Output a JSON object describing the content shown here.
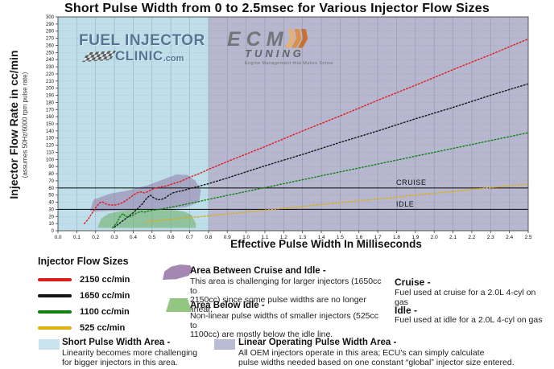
{
  "title": "Short Pulse Width from 0 to 2.5msec for Various Injector Flow Sizes",
  "watermarks": {
    "fic": {
      "line1": "FUEL INJECTOR",
      "line2": "CLINIC",
      "suffix": ".com"
    },
    "ecm": {
      "line1": "ECM",
      "line2": "TUNING",
      "tagline": "Engine Management that Makes Sense"
    }
  },
  "chart_data": {
    "type": "line",
    "title": "Short Pulse Width from 0 to 2.5msec for Various Injector Flow Sizes",
    "x_axis": {
      "label": "Effective Pulse Width In Milliseconds",
      "min": 0,
      "max": 2.5,
      "step": 0.1
    },
    "y_axis": {
      "label": "Injector Flow Rate in cc/min",
      "sublabel": "(assumes 50Hz/6000 rpm pulse rate)",
      "min": 0,
      "max": 300,
      "step": 10
    },
    "grid": true,
    "legend_position": "below",
    "reference_lines": [
      {
        "label": "CRUISE",
        "value": 60
      },
      {
        "label": "IDLE",
        "value": 30
      }
    ],
    "background_regions": [
      {
        "name": "Short Pulse Width Area",
        "from": 0,
        "to": 0.8,
        "color": "#bedfea"
      },
      {
        "name": "Linear Operating Pulse Width Area",
        "from": 0.8,
        "to": 2.5,
        "color": "#b7b7cf"
      }
    ],
    "highlight_areas": [
      {
        "name": "Area Between Cruise and Idle",
        "color": "#8e6fa0",
        "opacity": 0.5,
        "points": [
          [
            0.17,
            28
          ],
          [
            0.19,
            44
          ],
          [
            0.28,
            52
          ],
          [
            0.38,
            57
          ],
          [
            0.48,
            64
          ],
          [
            0.57,
            73
          ],
          [
            0.63,
            79
          ],
          [
            0.69,
            78
          ],
          [
            0.73,
            70
          ],
          [
            0.76,
            57
          ],
          [
            0.75,
            40
          ],
          [
            0.68,
            33
          ],
          [
            0.55,
            30
          ],
          [
            0.4,
            29
          ],
          [
            0.28,
            28
          ],
          [
            0.2,
            27
          ]
        ]
      },
      {
        "name": "Area Below Idle",
        "color": "#63a855",
        "opacity": 0.5,
        "points": [
          [
            0.21,
            4
          ],
          [
            0.23,
            17
          ],
          [
            0.27,
            24
          ],
          [
            0.32,
            27
          ],
          [
            0.38,
            29
          ],
          [
            0.46,
            30
          ],
          [
            0.55,
            30
          ],
          [
            0.62,
            29
          ],
          [
            0.67,
            27
          ],
          [
            0.71,
            22
          ],
          [
            0.73,
            12
          ],
          [
            0.735,
            4
          ]
        ]
      }
    ],
    "series": [
      {
        "name": "2150 cc/min",
        "color": "#e01b1b",
        "points": [
          [
            0.14,
            10
          ],
          [
            0.16,
            16
          ],
          [
            0.18,
            24
          ],
          [
            0.2,
            32
          ],
          [
            0.22,
            39
          ],
          [
            0.235,
            40.5
          ],
          [
            0.26,
            37
          ],
          [
            0.28,
            36
          ],
          [
            0.3,
            36
          ],
          [
            0.32,
            37
          ],
          [
            0.34,
            39
          ],
          [
            0.36,
            42
          ],
          [
            0.38,
            46
          ],
          [
            0.4,
            50
          ],
          [
            0.42,
            53
          ],
          [
            0.44,
            54.5
          ],
          [
            0.46,
            53
          ],
          [
            0.48,
            55
          ],
          [
            0.5,
            58
          ],
          [
            0.52,
            60
          ],
          [
            0.54,
            61
          ],
          [
            0.56,
            62
          ],
          [
            0.58,
            63
          ],
          [
            0.6,
            65
          ],
          [
            0.65,
            69
          ],
          [
            0.7,
            75
          ],
          [
            0.75,
            80
          ],
          [
            0.8,
            86
          ],
          [
            0.9,
            97
          ],
          [
            1,
            107.5
          ],
          [
            1.1,
            118
          ],
          [
            1.2,
            129
          ],
          [
            1.3,
            140
          ],
          [
            1.4,
            150.5
          ],
          [
            1.5,
            161
          ],
          [
            1.6,
            172
          ],
          [
            1.7,
            183
          ],
          [
            1.8,
            193.5
          ],
          [
            1.9,
            204
          ],
          [
            2,
            215
          ],
          [
            2.1,
            226
          ],
          [
            2.2,
            236.5
          ],
          [
            2.3,
            247
          ],
          [
            2.4,
            258
          ],
          [
            2.5,
            269
          ]
        ]
      },
      {
        "name": "1650 cc/min",
        "color": "#141414",
        "points": [
          [
            0.3,
            5
          ],
          [
            0.32,
            9
          ],
          [
            0.34,
            13
          ],
          [
            0.36,
            17
          ],
          [
            0.39,
            23
          ],
          [
            0.42,
            30
          ],
          [
            0.45,
            38
          ],
          [
            0.47,
            45
          ],
          [
            0.49,
            50
          ],
          [
            0.51,
            46
          ],
          [
            0.53,
            43.5
          ],
          [
            0.55,
            44
          ],
          [
            0.57,
            46
          ],
          [
            0.59,
            50
          ],
          [
            0.61,
            53
          ],
          [
            0.63,
            54.5
          ],
          [
            0.66,
            56
          ],
          [
            0.68,
            57.5
          ],
          [
            0.7,
            59
          ],
          [
            0.75,
            62.5
          ],
          [
            0.8,
            66
          ],
          [
            0.9,
            74
          ],
          [
            1,
            82.5
          ],
          [
            1.1,
            91
          ],
          [
            1.2,
            99
          ],
          [
            1.3,
            107
          ],
          [
            1.4,
            115.5
          ],
          [
            1.5,
            124
          ],
          [
            1.6,
            132
          ],
          [
            1.7,
            140
          ],
          [
            1.8,
            148.5
          ],
          [
            1.9,
            157
          ],
          [
            2,
            165
          ],
          [
            2.1,
            173
          ],
          [
            2.2,
            181.5
          ],
          [
            2.3,
            190
          ],
          [
            2.4,
            198
          ],
          [
            2.5,
            206
          ]
        ]
      },
      {
        "name": "1100 cc/min",
        "color": "#128112",
        "points": [
          [
            0.29,
            4
          ],
          [
            0.31,
            10
          ],
          [
            0.33,
            20
          ],
          [
            0.345,
            24
          ],
          [
            0.36,
            20
          ],
          [
            0.38,
            19.5
          ],
          [
            0.4,
            22
          ],
          [
            0.42,
            25
          ],
          [
            0.44,
            27
          ],
          [
            0.46,
            26
          ],
          [
            0.48,
            27.5
          ],
          [
            0.5,
            28.5
          ],
          [
            0.55,
            30.5
          ],
          [
            0.6,
            33
          ],
          [
            0.65,
            35.5
          ],
          [
            0.7,
            38.5
          ],
          [
            0.75,
            41
          ],
          [
            0.8,
            44
          ],
          [
            0.9,
            49.5
          ],
          [
            1,
            55
          ],
          [
            1.1,
            60.5
          ],
          [
            1.2,
            66
          ],
          [
            1.3,
            71.5
          ],
          [
            1.4,
            77
          ],
          [
            1.5,
            82.5
          ],
          [
            1.6,
            88
          ],
          [
            1.7,
            93.5
          ],
          [
            1.8,
            99
          ],
          [
            1.9,
            104.5
          ],
          [
            2,
            110
          ],
          [
            2.1,
            115.5
          ],
          [
            2.2,
            121
          ],
          [
            2.3,
            126.5
          ],
          [
            2.4,
            132
          ],
          [
            2.5,
            137.5
          ]
        ]
      },
      {
        "name": "525 cc/min",
        "color": "#e2ae0e",
        "points": [
          [
            0.47,
            12
          ],
          [
            0.5,
            13.5
          ],
          [
            0.55,
            14.5
          ],
          [
            0.6,
            16
          ],
          [
            0.65,
            17
          ],
          [
            0.7,
            18.5
          ],
          [
            0.75,
            19.5
          ],
          [
            0.8,
            21
          ],
          [
            0.9,
            23.5
          ],
          [
            1,
            26
          ],
          [
            1.1,
            29
          ],
          [
            1.2,
            31.5
          ],
          [
            1.3,
            34
          ],
          [
            1.4,
            37
          ],
          [
            1.5,
            39.5
          ],
          [
            1.6,
            42
          ],
          [
            1.7,
            44.5
          ],
          [
            1.8,
            47
          ],
          [
            1.9,
            50
          ],
          [
            2,
            52.5
          ],
          [
            2.1,
            55
          ],
          [
            2.2,
            58
          ],
          [
            2.3,
            60.5
          ],
          [
            2.4,
            63
          ],
          [
            2.5,
            65.5
          ]
        ]
      }
    ]
  },
  "legend": {
    "flow_title": "Injector Flow Sizes",
    "swatch_colors": {
      "short": "#c9e4ef",
      "linear": "#b9bad4"
    }
  },
  "notes": {
    "between": {
      "heading": "Area Between Cruise and Idle -",
      "body": "This area is challenging for larger injectors (1650cc to\n2150cc) since some pulse widths are no longer linear."
    },
    "below": {
      "heading": "Area Below Idle -",
      "body": "Non-linear pulse widths of smaller injectors (525cc to\n1100cc) are mostly below the idle line."
    },
    "cruise": {
      "heading": "Cruise -",
      "body": "Fuel used at cruise for a 2.0L 4-cyl on gas"
    },
    "idle": {
      "heading": "Idle -",
      "body": "Fuel used at idle for a 2.0L 4-cyl on gas"
    },
    "short": {
      "heading": "Short Pulse Width Area -",
      "body": "Linearity becomes more challenging\nfor bigger injectors in this area."
    },
    "linear": {
      "heading": "Linear Operating Pulse Width Area -",
      "body": "All OEM injectors operate in this area; ECU's can simply calculate\npulse widths needed based on one constant “global” injector size entered."
    }
  }
}
